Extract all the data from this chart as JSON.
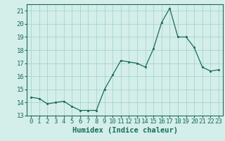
{
  "title": "",
  "xlabel": "Humidex (Indice chaleur)",
  "ylabel": "",
  "x_values": [
    0,
    1,
    2,
    3,
    4,
    5,
    6,
    7,
    8,
    9,
    10,
    11,
    12,
    13,
    14,
    15,
    16,
    17,
    18,
    19,
    20,
    21,
    22,
    23
  ],
  "y_values": [
    14.4,
    14.3,
    13.9,
    14.0,
    14.1,
    13.7,
    13.4,
    13.4,
    13.4,
    15.0,
    16.1,
    17.2,
    17.1,
    17.0,
    16.7,
    18.1,
    20.1,
    21.2,
    19.0,
    19.0,
    18.2,
    16.7,
    16.4,
    16.5
  ],
  "ylim": [
    13,
    21.5
  ],
  "xlim": [
    -0.5,
    23.5
  ],
  "yticks": [
    13,
    14,
    15,
    16,
    17,
    18,
    19,
    20,
    21
  ],
  "xticks": [
    0,
    1,
    2,
    3,
    4,
    5,
    6,
    7,
    8,
    9,
    10,
    11,
    12,
    13,
    14,
    15,
    16,
    17,
    18,
    19,
    20,
    21,
    22,
    23
  ],
  "line_color": "#1a6b5a",
  "marker_color": "#1a6b5a",
  "bg_color": "#d4eeea",
  "grid_color": "#a0cfc8",
  "axes_color": "#1a6b5a",
  "tick_label_color": "#1a6b5a",
  "xlabel_color": "#1a6b5a",
  "tick_fontsize": 6.5,
  "xlabel_fontsize": 7.5
}
